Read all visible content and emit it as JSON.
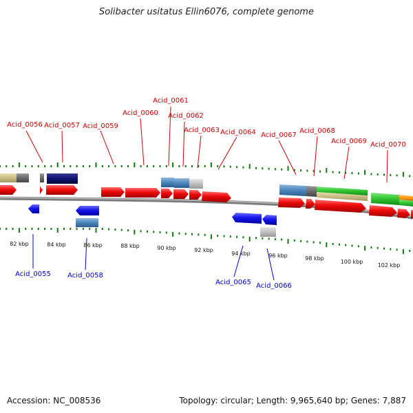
{
  "title": "Solibacter usitatus Ellin6076, complete genome",
  "footer": {
    "accession": "Accession: NC_008536",
    "summary": "Topology: circular; Length: 9,965,640 bp; Genes: 7,887"
  },
  "colors": {
    "forward_gene": "#ee0000",
    "reverse_gene": "#1010ee",
    "forward_label": "#cc0000",
    "reverse_label": "#0000cc",
    "backbone": "#8a8a8a",
    "tick": "#117711"
  },
  "top_labels": [
    "Acid_0056",
    "Acid_0057",
    "Acid_0059",
    "Acid_0060",
    "Acid_0061",
    "Acid_0062",
    "Acid_0063",
    "Acid_0064",
    "Acid_0067",
    "Acid_0068",
    "Acid_0069",
    "Acid_0070"
  ],
  "bottom_labels": [
    "Acid_0055",
    "Acid_0058",
    "Acid_0065",
    "Acid_0066"
  ],
  "scale_labels": [
    "82 kbp",
    "84 kbp",
    "86 kbp",
    "88 kbp",
    "90 kbp",
    "92 kbp",
    "94 kbp",
    "96 kbp",
    "98 kbp",
    "100 kbp",
    "102 kbp"
  ]
}
